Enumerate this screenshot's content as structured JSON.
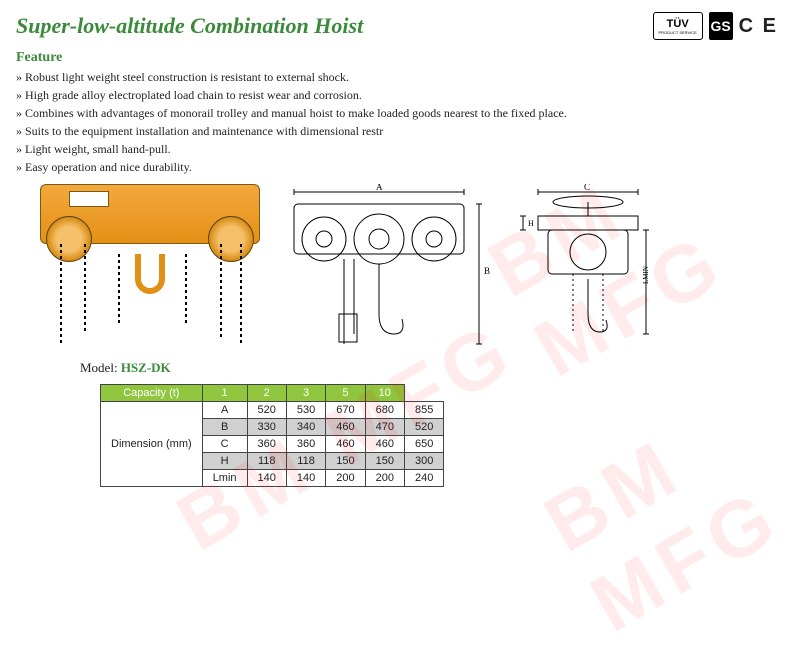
{
  "title": "Super-low-altitude Combination Hoist",
  "cert": {
    "tuv": "TÜV",
    "tuv_sub": "PRODUCT SERVICE",
    "gs": "GS",
    "ce": "C E"
  },
  "feature_heading": "Feature",
  "features": [
    "Robust light weight steel construction is resistant to external shock.",
    "High grade alloy electroplated load chain to resist wear and corrosion.",
    "Combines with advantages of monorail trolley and manual hoist to make loaded goods nearest to the fixed place.",
    "Suits to the equipment installation and maintenance with dimensional restr",
    "Light weight, small hand-pull.",
    "Easy operation and nice durability."
  ],
  "model_label": "Model:",
  "model_name": "HSZ-DK",
  "diagram_labels": {
    "A": "A",
    "B": "B",
    "C": "C",
    "H": "H",
    "Lmin": "LMIN"
  },
  "table": {
    "header": [
      "Capacity (t)",
      "1",
      "2",
      "3",
      "5",
      "10"
    ],
    "dim_label": "Dimension (mm)",
    "rows": [
      {
        "label": "A",
        "vals": [
          "520",
          "530",
          "670",
          "680",
          "855"
        ],
        "shade": false
      },
      {
        "label": "B",
        "vals": [
          "330",
          "340",
          "460",
          "470",
          "520"
        ],
        "shade": true
      },
      {
        "label": "C",
        "vals": [
          "360",
          "360",
          "460",
          "460",
          "650"
        ],
        "shade": false
      },
      {
        "label": "H",
        "vals": [
          "118",
          "118",
          "150",
          "150",
          "300"
        ],
        "shade": true
      },
      {
        "label": "Lmin",
        "vals": [
          "140",
          "140",
          "200",
          "200",
          "240"
        ],
        "shade": false
      }
    ]
  },
  "colors": {
    "green": "#3a8a3a",
    "table_header": "#8fc63d",
    "shade": "#d0d0d0",
    "hoist_orange": "#e49016",
    "watermark": "rgba(255,0,0,0.08)"
  },
  "watermark_text": "BM MFG"
}
